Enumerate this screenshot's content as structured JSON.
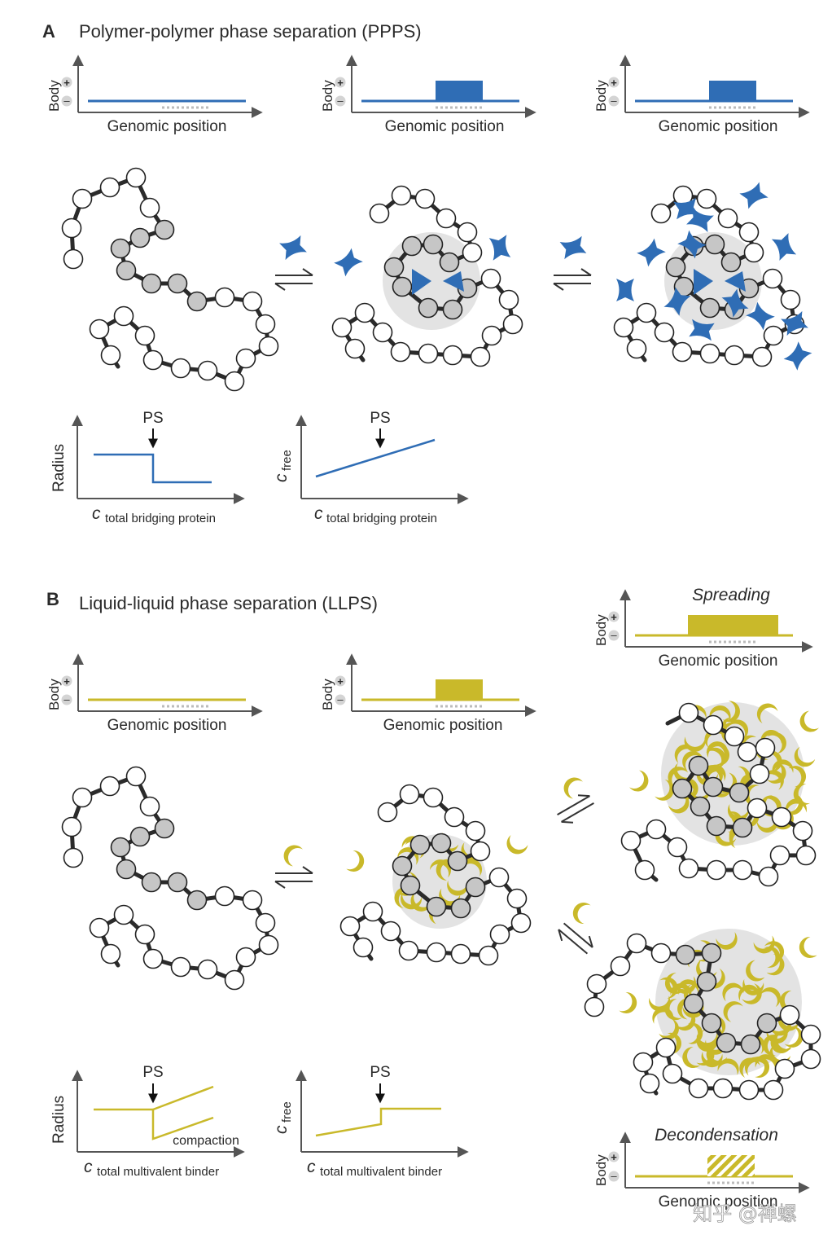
{
  "colors": {
    "blue": "#2f6db5",
    "gold": "#c9b92a",
    "axis": "#555555",
    "bead_fill": "#ffffff",
    "bead_gray": "#c6c6c6",
    "halo": "#e3e3e3"
  },
  "panel_a": {
    "letter": "A",
    "title": "Polymer-polymer phase separation (PPPS)",
    "profile_ylabel": "Body",
    "profile_plus": "+",
    "profile_minus": "–",
    "profile_xlabel": "Genomic position",
    "plot1": {
      "ylabel": "Radius",
      "xlabel_c": "c",
      "xlabel_sub": "total bridging protein",
      "marker": "PS"
    },
    "plot2": {
      "ylabel_c": "c",
      "ylabel_sub": "free",
      "xlabel_c": "c",
      "xlabel_sub": "total bridging protein",
      "marker": "PS"
    },
    "icons": [
      "bridging-protein-icon",
      "equilibrium-arrows-icon"
    ]
  },
  "panel_b": {
    "letter": "B",
    "title": "Liquid-liquid phase separation (LLPS)",
    "profile_ylabel": "Body",
    "profile_plus": "+",
    "profile_minus": "–",
    "profile_xlabel": "Genomic position",
    "spreading_label": "Spreading",
    "decondensation_label": "Decondensation",
    "plot1": {
      "ylabel": "Radius",
      "xlabel_c": "c",
      "xlabel_sub": "total multivalent binder",
      "marker": "PS",
      "annotation": "compaction"
    },
    "plot2": {
      "ylabel_c": "c",
      "ylabel_sub": "free",
      "xlabel_c": "c",
      "xlabel_sub": "total multivalent binder",
      "marker": "PS"
    },
    "icons": [
      "multivalent-binder-icon",
      "equilibrium-arrows-icon"
    ]
  },
  "watermark": "知乎 @禅螺"
}
